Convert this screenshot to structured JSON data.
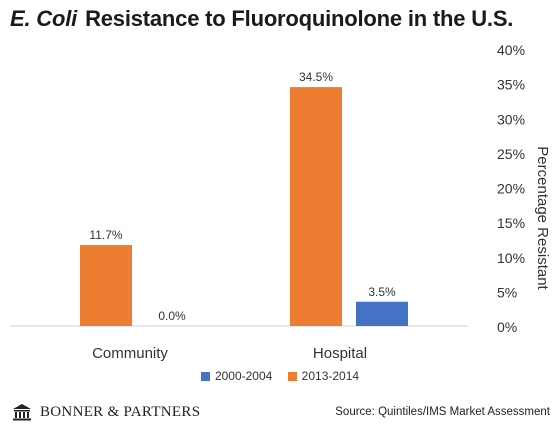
{
  "title": {
    "italic_part": "E. Coli",
    "rest": "Resistance to Fluoroquinolone in the U.S."
  },
  "footer": {
    "brand": "BONNER & PARTNERS",
    "source": "Source: Quintiles/IMS Market Assessment"
  },
  "chart_data": {
    "type": "bar",
    "title": "E. Coli Resistance to Fluoroquinolone in the U.S.",
    "categories": [
      "Community",
      "Hospital"
    ],
    "series": [
      {
        "name": "2000-2004",
        "color": "#4472c4",
        "values": [
          0.0,
          3.5
        ],
        "labels": [
          "0.0%",
          "3.5%"
        ]
      },
      {
        "name": "2013-2014",
        "color": "#ed7d31",
        "values": [
          11.7,
          34.5
        ],
        "labels": [
          "11.7%",
          "34.5%"
        ]
      }
    ],
    "bar_order": [
      "2013-2014",
      "2000-2004"
    ],
    "xlabel": "",
    "ylabel": "Percentage Resistant",
    "ylim": [
      0,
      40
    ],
    "yticks": [
      0,
      5,
      10,
      15,
      20,
      25,
      30,
      35,
      40
    ],
    "ytick_labels": [
      "0%",
      "5%",
      "10%",
      "15%",
      "20%",
      "25%",
      "30%",
      "35%",
      "40%"
    ],
    "y_axis_side": "right",
    "grid": false,
    "legend": "bottom"
  }
}
